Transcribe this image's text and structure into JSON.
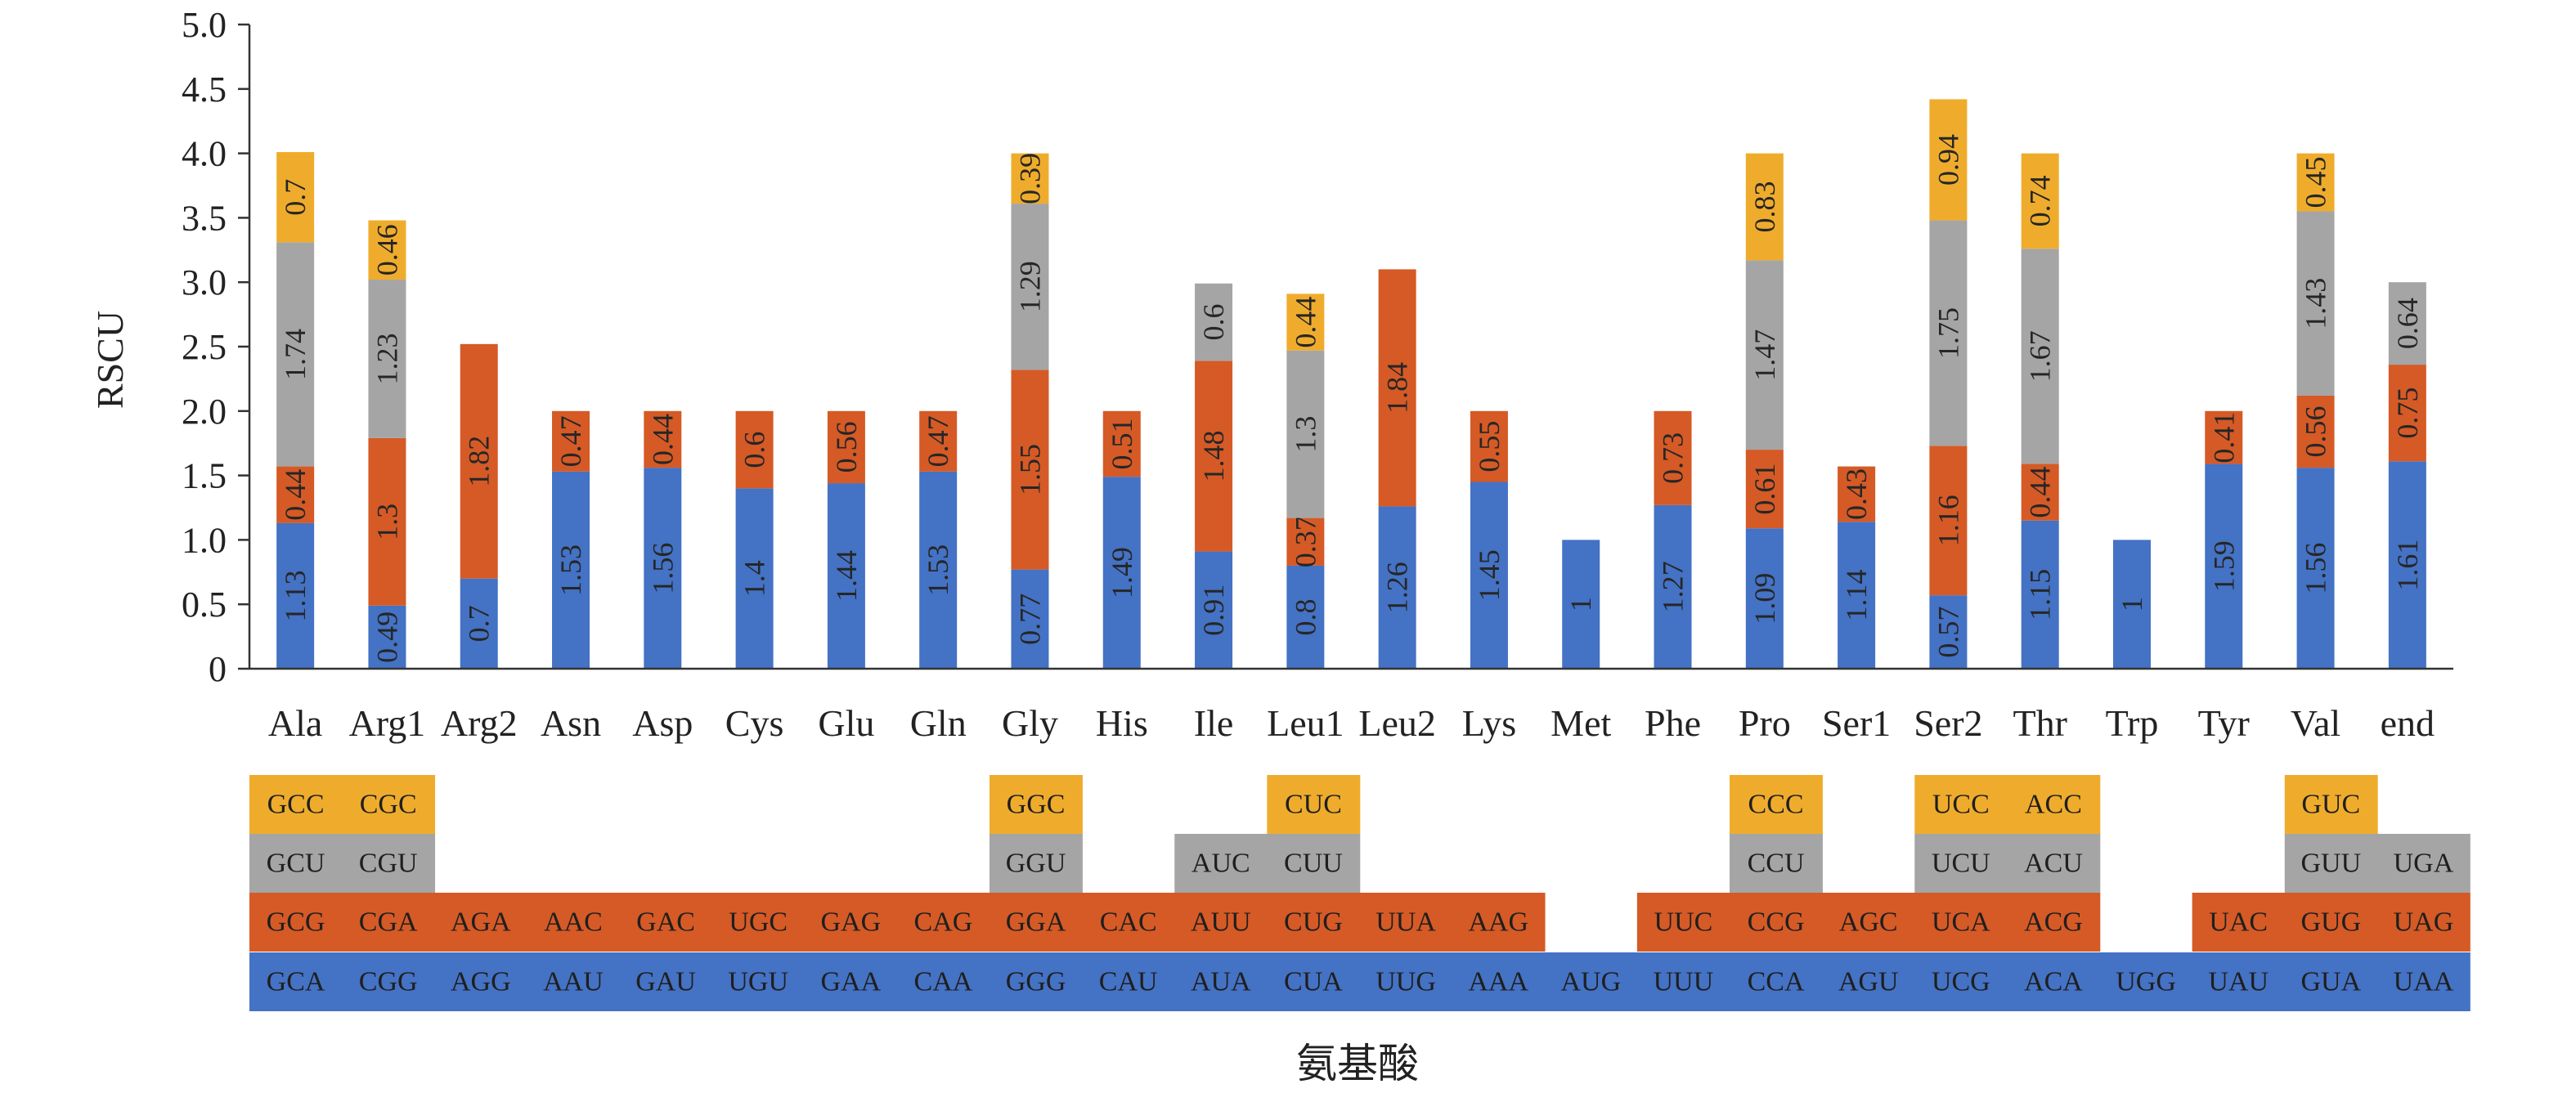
{
  "chart_data": {
    "type": "bar",
    "stacked": true,
    "title": "",
    "ylabel": "RSCU",
    "xlabel": "氨基酸",
    "ylim": [
      0,
      5.0
    ],
    "yticks": [
      "0",
      "0.5",
      "1.0",
      "1.5",
      "2.0",
      "2.5",
      "3.0",
      "3.5",
      "4.0",
      "4.5",
      "5.0"
    ],
    "categories": [
      "Ala",
      "Arg1",
      "Arg2",
      "Asn",
      "Asp",
      "Cys",
      "Glu",
      "Gln",
      "Gly",
      "His",
      "Ile",
      "Leu1",
      "Leu2",
      "Lys",
      "Met",
      "Phe",
      "Pro",
      "Ser1",
      "Ser2",
      "Thr",
      "Trp",
      "Tyr",
      "Val",
      "end"
    ],
    "colors": [
      "#4472C4",
      "#D55A26",
      "#A5A5A5",
      "#EFAC2C"
    ],
    "stacks": [
      [
        {
          "value": 1.13,
          "label": "1.13",
          "codon": "GCA"
        },
        {
          "value": 0.44,
          "label": "0.44",
          "codon": "GCG"
        },
        {
          "value": 1.74,
          "label": "1.74",
          "codon": "GCU"
        },
        {
          "value": 0.7,
          "label": "0.7",
          "codon": "GCC"
        }
      ],
      [
        {
          "value": 0.49,
          "label": "0.49",
          "codon": "CGG"
        },
        {
          "value": 1.3,
          "label": "1.3",
          "codon": "CGA"
        },
        {
          "value": 1.23,
          "label": "1.23",
          "codon": "CGU"
        },
        {
          "value": 0.46,
          "label": "0.46",
          "codon": "CGC"
        }
      ],
      [
        {
          "value": 0.7,
          "label": "0.7",
          "codon": "AGG"
        },
        {
          "value": 1.82,
          "label": "1.82",
          "codon": "AGA"
        }
      ],
      [
        {
          "value": 1.53,
          "label": "1.53",
          "codon": "AAU"
        },
        {
          "value": 0.47,
          "label": "0.47",
          "codon": "AAC"
        }
      ],
      [
        {
          "value": 1.56,
          "label": "1.56",
          "codon": "GAU"
        },
        {
          "value": 0.44,
          "label": "0.44",
          "codon": "GAC"
        }
      ],
      [
        {
          "value": 1.4,
          "label": "1.4",
          "codon": "UGU"
        },
        {
          "value": 0.6,
          "label": "0.6",
          "codon": "UGC"
        }
      ],
      [
        {
          "value": 1.44,
          "label": "1.44",
          "codon": "GAA"
        },
        {
          "value": 0.56,
          "label": "0.56",
          "codon": "GAG"
        }
      ],
      [
        {
          "value": 1.53,
          "label": "1.53",
          "codon": "CAA"
        },
        {
          "value": 0.47,
          "label": "0.47",
          "codon": "CAG"
        }
      ],
      [
        {
          "value": 0.77,
          "label": "0.77",
          "codon": "GGG"
        },
        {
          "value": 1.55,
          "label": "1.55",
          "codon": "GGA"
        },
        {
          "value": 1.29,
          "label": "1.29",
          "codon": "GGU"
        },
        {
          "value": 0.39,
          "label": "0.39",
          "codon": "GGC"
        }
      ],
      [
        {
          "value": 1.49,
          "label": "1.49",
          "codon": "CAU"
        },
        {
          "value": 0.51,
          "label": "0.51",
          "codon": "CAC"
        }
      ],
      [
        {
          "value": 0.91,
          "label": "0.91",
          "codon": "AUA"
        },
        {
          "value": 1.48,
          "label": "1.48",
          "codon": "AUU"
        },
        {
          "value": 0.6,
          "label": "0.6",
          "codon": "AUC"
        }
      ],
      [
        {
          "value": 0.8,
          "label": "0.8",
          "codon": "CUA"
        },
        {
          "value": 0.37,
          "label": "0.37",
          "codon": "CUG"
        },
        {
          "value": 1.3,
          "label": "1.3",
          "codon": "CUU"
        },
        {
          "value": 0.44,
          "label": "0.44",
          "codon": "CUC"
        }
      ],
      [
        {
          "value": 1.26,
          "label": "1.26",
          "codon": "UUG"
        },
        {
          "value": 1.84,
          "label": "1.84",
          "codon": "UUA"
        }
      ],
      [
        {
          "value": 1.45,
          "label": "1.45",
          "codon": "AAA"
        },
        {
          "value": 0.55,
          "label": "0.55",
          "codon": "AAG"
        }
      ],
      [
        {
          "value": 1,
          "label": "1",
          "codon": "AUG"
        }
      ],
      [
        {
          "value": 1.27,
          "label": "1.27",
          "codon": "UUU"
        },
        {
          "value": 0.73,
          "label": "0.73",
          "codon": "UUC"
        }
      ],
      [
        {
          "value": 1.09,
          "label": "1.09",
          "codon": "CCA"
        },
        {
          "value": 0.61,
          "label": "0.61",
          "codon": "CCG"
        },
        {
          "value": 1.47,
          "label": "1.47",
          "codon": "CCU"
        },
        {
          "value": 0.83,
          "label": "0.83",
          "codon": "CCC"
        }
      ],
      [
        {
          "value": 1.14,
          "label": "1.14",
          "codon": "AGU"
        },
        {
          "value": 0.43,
          "label": "0.43",
          "codon": "AGC"
        }
      ],
      [
        {
          "value": 0.57,
          "label": "0.57",
          "codon": "UCG"
        },
        {
          "value": 1.16,
          "label": "1.16",
          "codon": "UCA"
        },
        {
          "value": 1.75,
          "label": "1.75",
          "codon": "UCU"
        },
        {
          "value": 0.94,
          "label": "0.94",
          "codon": "UCC"
        }
      ],
      [
        {
          "value": 1.15,
          "label": "1.15",
          "codon": "ACA"
        },
        {
          "value": 0.44,
          "label": "0.44",
          "codon": "ACG"
        },
        {
          "value": 1.67,
          "label": "1.67",
          "codon": "ACU"
        },
        {
          "value": 0.74,
          "label": "0.74",
          "codon": "ACC"
        }
      ],
      [
        {
          "value": 1,
          "label": "1",
          "codon": "UGG"
        }
      ],
      [
        {
          "value": 1.59,
          "label": "1.59",
          "codon": "UAU"
        },
        {
          "value": 0.41,
          "label": "0.41",
          "codon": "UAC"
        }
      ],
      [
        {
          "value": 1.56,
          "label": "1.56",
          "codon": "GUA"
        },
        {
          "value": 0.56,
          "label": "0.56",
          "codon": "GUG"
        },
        {
          "value": 1.43,
          "label": "1.43",
          "codon": "GUU"
        },
        {
          "value": 0.45,
          "label": "0.45",
          "codon": "GUC"
        }
      ],
      [
        {
          "value": 1.61,
          "label": "1.61",
          "codon": "UAA"
        },
        {
          "value": 0.75,
          "label": "0.75",
          "codon": "UAG"
        },
        {
          "value": 0.64,
          "label": "0.64",
          "codon": "UGA"
        }
      ]
    ],
    "legend": "codon table below x-axis",
    "grid": false
  }
}
